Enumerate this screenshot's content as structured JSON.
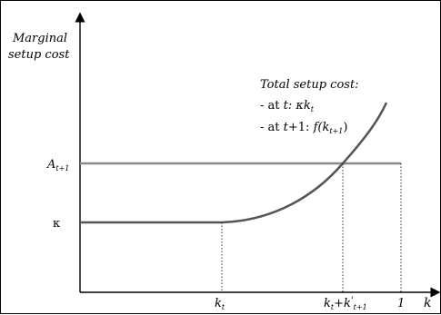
{
  "diagram": {
    "y_axis_label_line1": "Marginal",
    "y_axis_label_line2": "setup cost",
    "x_axis_label": "k",
    "level_A": {
      "base": "A",
      "sub": "t+1"
    },
    "level_kappa": "κ",
    "tick_kt": {
      "base": "k",
      "sub": "t"
    },
    "tick_ktk": {
      "base1": "k",
      "sub1": "t",
      "plus": "+",
      "base2": "k",
      "prime": "'",
      "sub2": "t+1"
    },
    "tick_one": "1",
    "annotation": {
      "title": "Total setup cost:",
      "line1_prefix": "- at ",
      "line1_t": "t:",
      "line1_expr": " κk",
      "line1_sub": "t",
      "line2_prefix": "- at ",
      "line2_t": "t",
      "line2_mid": "+1: ",
      "line2_f": "f",
      "line2_open": "(k",
      "line2_sub": "t+1",
      "line2_close": ")"
    },
    "colors": {
      "axis": "#000000",
      "curve": "#555555",
      "level_line": "#888888",
      "guide": "#000000"
    }
  }
}
